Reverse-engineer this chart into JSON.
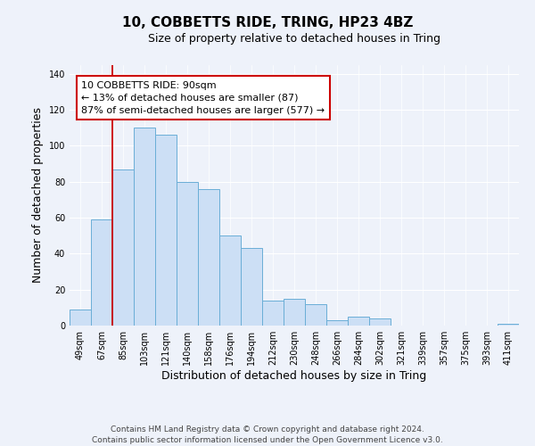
{
  "title": "10, COBBETTS RIDE, TRING, HP23 4BZ",
  "subtitle": "Size of property relative to detached houses in Tring",
  "xlabel": "Distribution of detached houses by size in Tring",
  "ylabel": "Number of detached properties",
  "bar_values": [
    9,
    59,
    87,
    110,
    106,
    80,
    76,
    50,
    43,
    14,
    15,
    12,
    3,
    5,
    4,
    0,
    0,
    0,
    0,
    0,
    1
  ],
  "bar_labels": [
    "49sqm",
    "67sqm",
    "85sqm",
    "103sqm",
    "121sqm",
    "140sqm",
    "158sqm",
    "176sqm",
    "194sqm",
    "212sqm",
    "230sqm",
    "248sqm",
    "266sqm",
    "284sqm",
    "302sqm",
    "321sqm",
    "339sqm",
    "357sqm",
    "375sqm",
    "393sqm",
    "411sqm"
  ],
  "bar_color": "#ccdff5",
  "bar_edge_color": "#6aaed6",
  "ylim": [
    0,
    145
  ],
  "yticks": [
    0,
    20,
    40,
    60,
    80,
    100,
    120,
    140
  ],
  "vline_x_index": 2,
  "vline_color": "#cc0000",
  "annotation_text": "10 COBBETTS RIDE: 90sqm\n← 13% of detached houses are smaller (87)\n87% of semi-detached houses are larger (577) →",
  "footer_line1": "Contains HM Land Registry data © Crown copyright and database right 2024.",
  "footer_line2": "Contains public sector information licensed under the Open Government Licence v3.0.",
  "background_color": "#eef2fa",
  "plot_background": "#eef2fa",
  "title_fontsize": 11,
  "subtitle_fontsize": 9,
  "axis_label_fontsize": 9,
  "tick_fontsize": 7,
  "footer_fontsize": 6.5,
  "annotation_fontsize": 8
}
